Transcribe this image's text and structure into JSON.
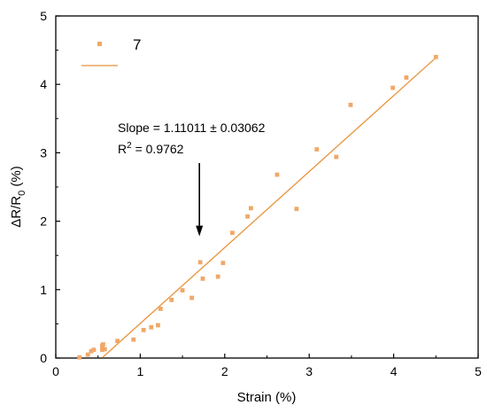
{
  "chart_data": {
    "type": "scatter",
    "xlabel": "Strain (%)",
    "ylabel_main": "ΔR/R",
    "ylabel_sub": "0",
    "ylabel_suffix": " (%)",
    "xlim": [
      0,
      5
    ],
    "ylim": [
      0,
      5
    ],
    "xticks": [
      0,
      1,
      2,
      3,
      4,
      5
    ],
    "yticks": [
      0,
      1,
      2,
      3,
      4,
      5
    ],
    "grid": false,
    "legend": {
      "position": "top-left",
      "marker_label": "7"
    },
    "series": [
      {
        "name": "7",
        "color": "#f0a868",
        "points": [
          [
            0.28,
            0.01
          ],
          [
            0.38,
            0.05
          ],
          [
            0.42,
            0.1
          ],
          [
            0.45,
            0.12
          ],
          [
            0.55,
            0.12
          ],
          [
            0.55,
            0.18
          ],
          [
            0.56,
            0.2
          ],
          [
            0.58,
            0.13
          ],
          [
            0.73,
            0.25
          ],
          [
            0.92,
            0.27
          ],
          [
            1.04,
            0.41
          ],
          [
            1.13,
            0.45
          ],
          [
            1.21,
            0.48
          ],
          [
            1.24,
            0.72
          ],
          [
            1.37,
            0.85
          ],
          [
            1.5,
            0.99
          ],
          [
            1.61,
            0.88
          ],
          [
            1.71,
            1.4
          ],
          [
            1.74,
            1.16
          ],
          [
            1.92,
            1.19
          ],
          [
            1.98,
            1.39
          ],
          [
            2.09,
            1.83
          ],
          [
            2.27,
            2.07
          ],
          [
            2.31,
            2.19
          ],
          [
            2.62,
            2.68
          ],
          [
            2.85,
            2.18
          ],
          [
            3.09,
            3.05
          ],
          [
            3.32,
            2.94
          ],
          [
            3.49,
            3.7
          ],
          [
            3.99,
            3.95
          ],
          [
            4.15,
            4.1
          ],
          [
            4.5,
            4.4
          ]
        ]
      }
    ],
    "fit_line": {
      "color": "#e8923a",
      "x_start": 0.55,
      "x_end": 4.5,
      "slope": 1.11011,
      "intercept": -0.605
    },
    "annotations": {
      "slope_text": "Slope = 1.11011 ± 0.03062",
      "r2_prefix": "R",
      "r2_sup": "2",
      "r2_suffix": " = 0.9762",
      "arrow_x": 1.7,
      "arrow_y_top": 2.85,
      "arrow_y_bottom": 1.78
    }
  }
}
